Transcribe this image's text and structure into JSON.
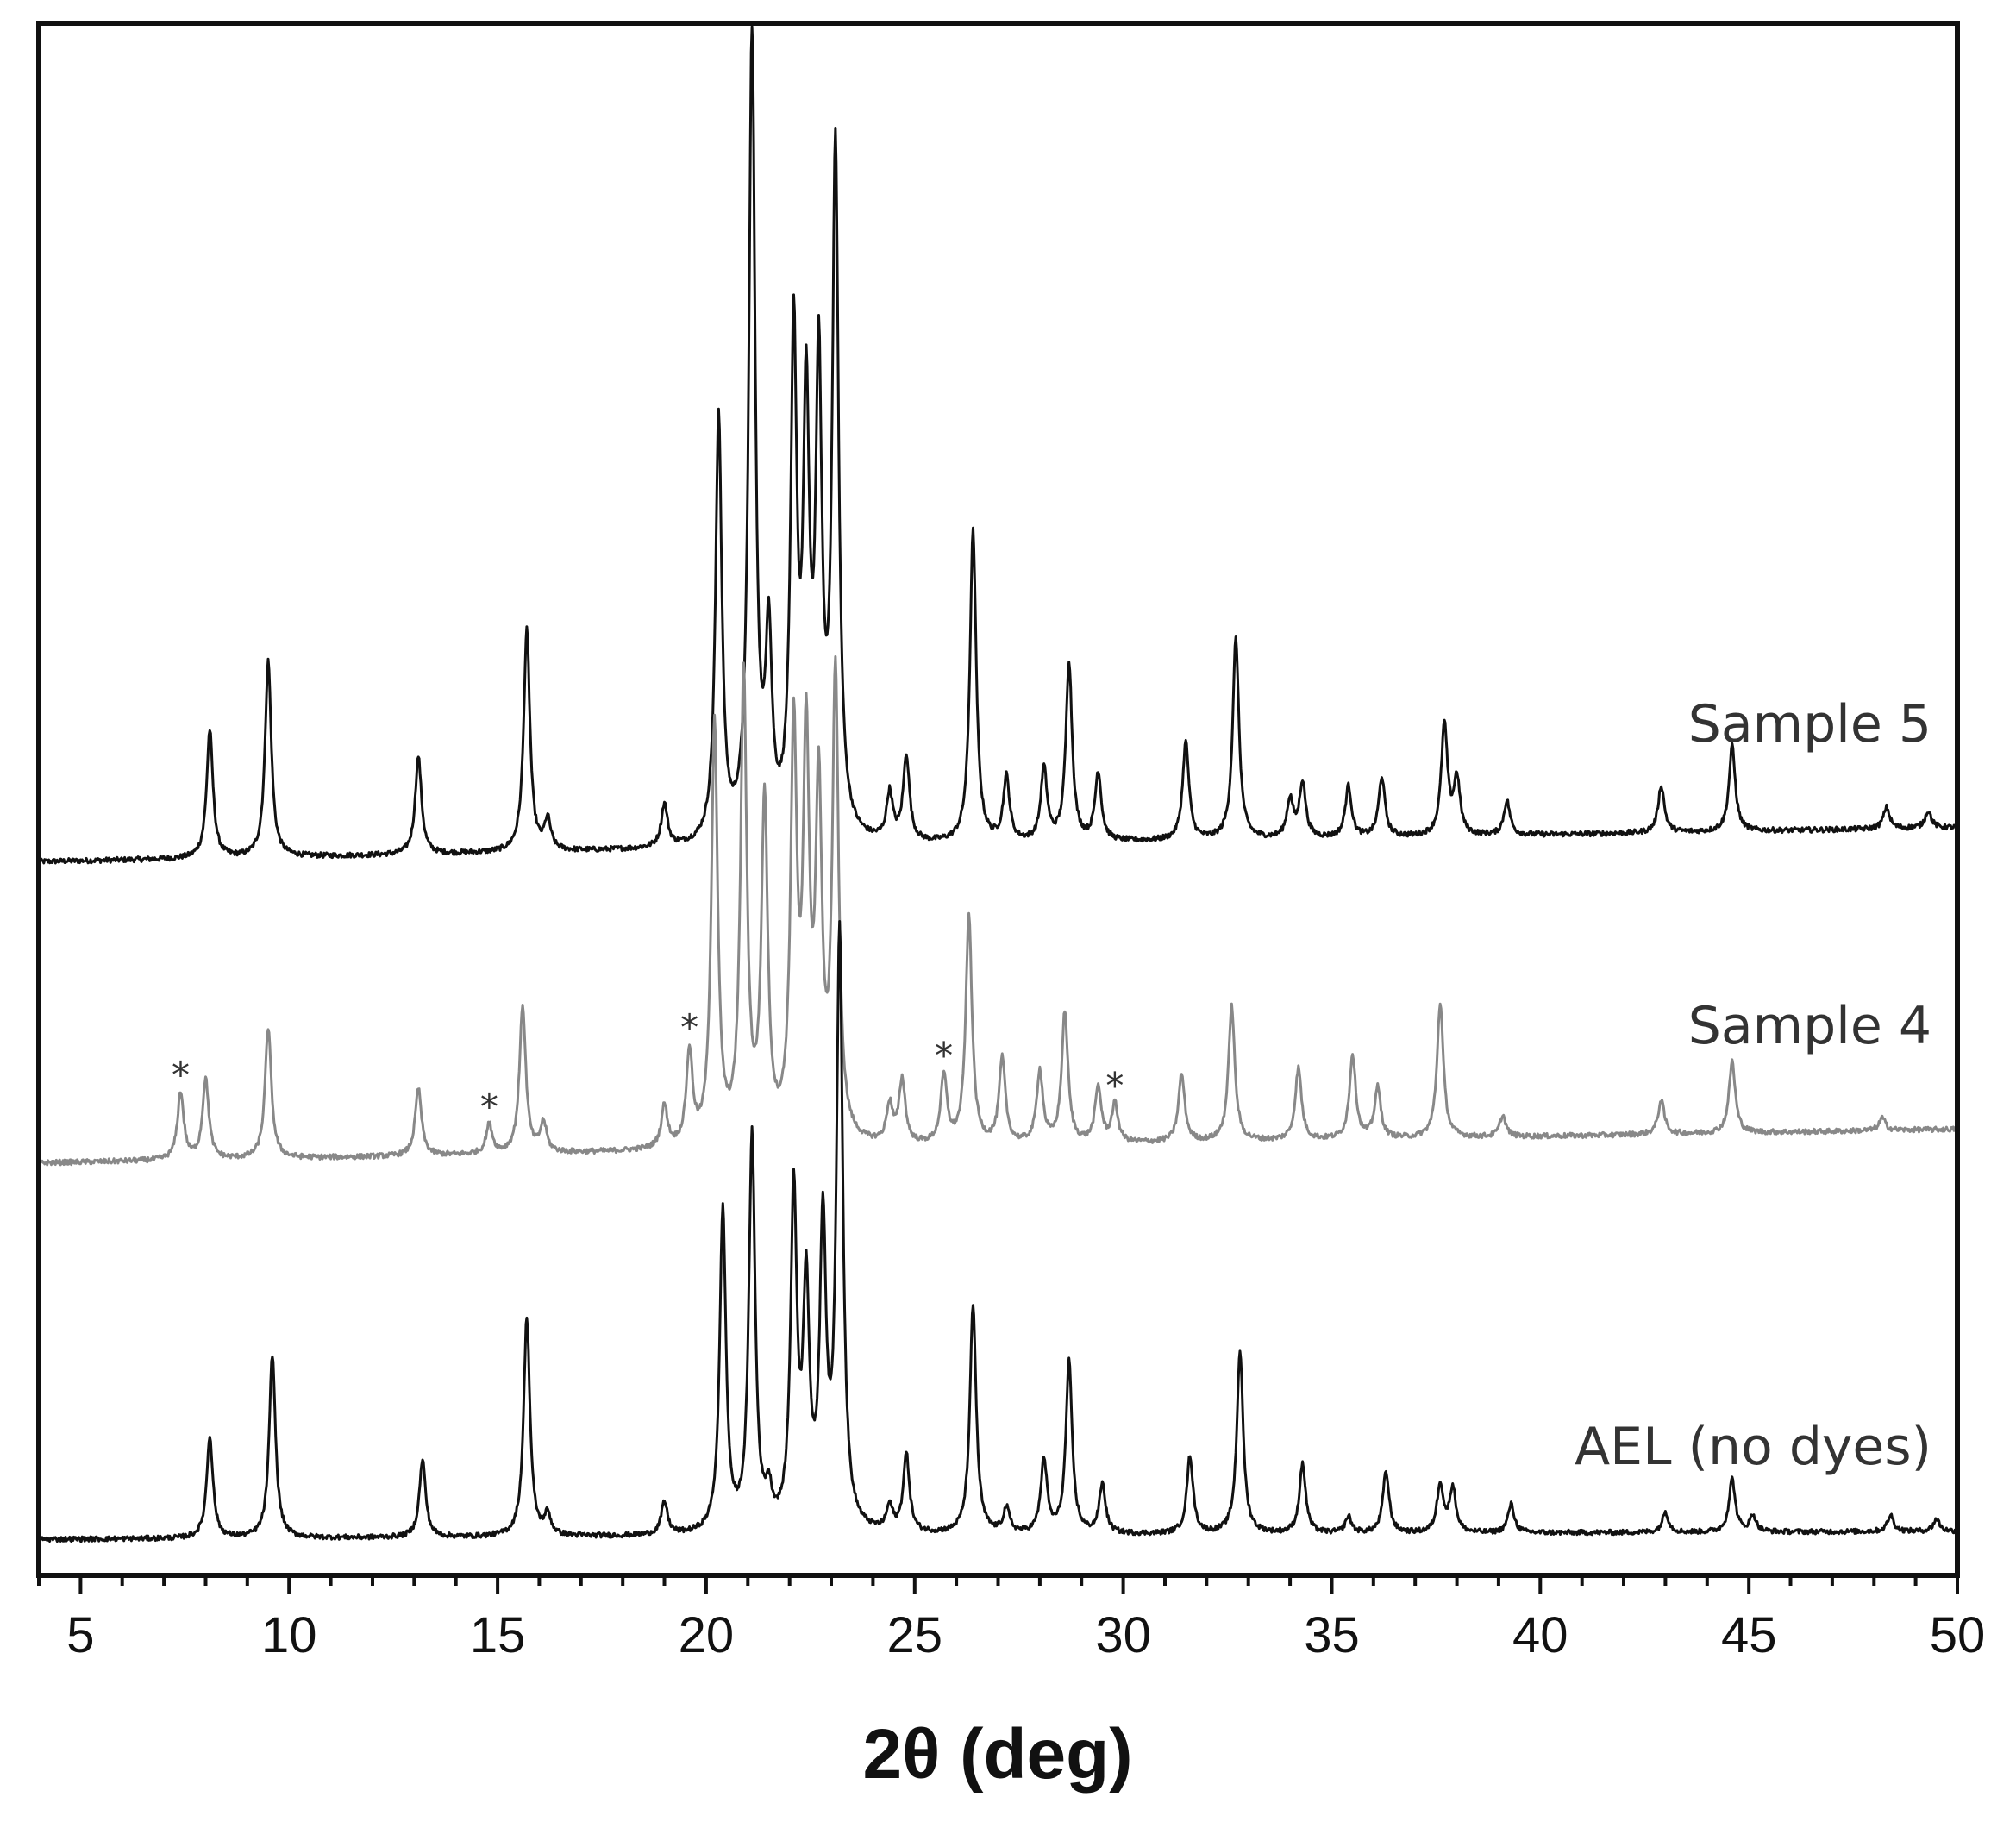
{
  "chart_data": {
    "type": "line",
    "xlabel": "2θ (deg)",
    "ylabel": "",
    "xlim": [
      4,
      50
    ],
    "x_ticks": [
      5,
      10,
      15,
      20,
      25,
      30,
      35,
      40,
      45,
      50
    ],
    "y_ticks": false,
    "grid": false,
    "legend": "inline labels at right end of each trace",
    "impurity_marker": "*",
    "impurity_positions": [
      7.4,
      14.8,
      19.6,
      25.7,
      29.8
    ],
    "series": [
      {
        "name": "Sample 5",
        "color": "#111111",
        "baseline": 0.08,
        "baseline_end": 0.16,
        "peaks": [
          [
            8.1,
            0.3
          ],
          [
            9.5,
            0.46
          ],
          [
            13.1,
            0.23
          ],
          [
            15.7,
            0.52
          ],
          [
            16.2,
            0.07
          ],
          [
            19.0,
            0.1
          ],
          [
            20.3,
            1.0
          ],
          [
            21.1,
            1.9
          ],
          [
            21.5,
            0.45
          ],
          [
            22.1,
            1.15
          ],
          [
            22.4,
            0.95
          ],
          [
            22.7,
            1.05
          ],
          [
            23.1,
            1.6
          ],
          [
            24.4,
            0.11
          ],
          [
            24.8,
            0.2
          ],
          [
            26.4,
            0.73
          ],
          [
            27.2,
            0.15
          ],
          [
            28.1,
            0.17
          ],
          [
            28.7,
            0.42
          ],
          [
            29.4,
            0.16
          ],
          [
            31.5,
            0.23
          ],
          [
            32.7,
            0.47
          ],
          [
            34.0,
            0.09
          ],
          [
            34.3,
            0.13
          ],
          [
            35.4,
            0.12
          ],
          [
            36.2,
            0.14
          ],
          [
            37.7,
            0.26
          ],
          [
            38.0,
            0.13
          ],
          [
            39.2,
            0.08
          ],
          [
            42.9,
            0.11
          ],
          [
            44.6,
            0.2
          ],
          [
            48.3,
            0.05
          ],
          [
            49.3,
            0.04
          ]
        ]
      },
      {
        "name": "Sample 4",
        "color": "#888888",
        "baseline": 0.08,
        "baseline_end": 0.16,
        "peaks": [
          [
            7.4,
            0.16
          ],
          [
            8.0,
            0.19
          ],
          [
            9.5,
            0.31
          ],
          [
            13.1,
            0.16
          ],
          [
            14.8,
            0.07
          ],
          [
            15.6,
            0.35
          ],
          [
            16.1,
            0.07
          ],
          [
            19.0,
            0.1
          ],
          [
            19.6,
            0.22
          ],
          [
            20.2,
            1.0
          ],
          [
            20.9,
            1.1
          ],
          [
            21.4,
            0.8
          ],
          [
            22.1,
            0.95
          ],
          [
            22.4,
            0.9
          ],
          [
            22.7,
            0.8
          ],
          [
            23.1,
            1.1
          ],
          [
            24.4,
            0.09
          ],
          [
            24.7,
            0.15
          ],
          [
            25.7,
            0.16
          ],
          [
            26.3,
            0.54
          ],
          [
            27.1,
            0.2
          ],
          [
            28.0,
            0.17
          ],
          [
            28.6,
            0.31
          ],
          [
            29.4,
            0.13
          ],
          [
            29.8,
            0.09
          ],
          [
            31.4,
            0.16
          ],
          [
            32.6,
            0.32
          ],
          [
            34.2,
            0.17
          ],
          [
            35.5,
            0.2
          ],
          [
            36.1,
            0.12
          ],
          [
            37.6,
            0.32
          ],
          [
            39.1,
            0.05
          ],
          [
            42.9,
            0.08
          ],
          [
            44.6,
            0.17
          ],
          [
            48.2,
            0.03
          ]
        ]
      },
      {
        "name": "AEL (no dyes)",
        "color": "#111111",
        "baseline": 0.01,
        "baseline_end": 0.03,
        "peaks": [
          [
            8.1,
            0.25
          ],
          [
            9.6,
            0.45
          ],
          [
            13.2,
            0.19
          ],
          [
            15.7,
            0.54
          ],
          [
            16.2,
            0.05
          ],
          [
            19.0,
            0.08
          ],
          [
            20.4,
            0.79
          ],
          [
            21.1,
            0.97
          ],
          [
            21.5,
            0.08
          ],
          [
            22.1,
            0.82
          ],
          [
            22.4,
            0.57
          ],
          [
            22.8,
            0.73
          ],
          [
            23.2,
            1.46
          ],
          [
            24.4,
            0.06
          ],
          [
            24.8,
            0.19
          ],
          [
            26.4,
            0.56
          ],
          [
            27.2,
            0.06
          ],
          [
            28.1,
            0.18
          ],
          [
            28.7,
            0.42
          ],
          [
            29.5,
            0.12
          ],
          [
            31.6,
            0.19
          ],
          [
            32.8,
            0.45
          ],
          [
            34.3,
            0.17
          ],
          [
            35.4,
            0.04
          ],
          [
            36.3,
            0.15
          ],
          [
            37.6,
            0.12
          ],
          [
            37.9,
            0.11
          ],
          [
            39.3,
            0.07
          ],
          [
            43.0,
            0.05
          ],
          [
            44.6,
            0.13
          ],
          [
            45.1,
            0.04
          ],
          [
            48.4,
            0.04
          ],
          [
            49.5,
            0.03
          ]
        ]
      }
    ]
  }
}
